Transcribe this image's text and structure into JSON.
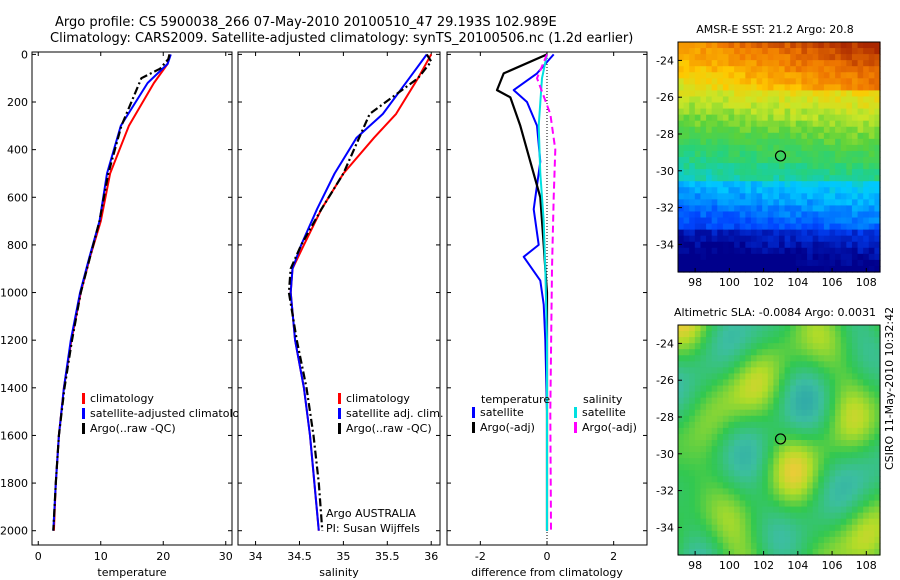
{
  "header": {
    "line1": "Argo profile: CS 5900038_266 07-May-2010 20100510_47 29.193S 102.989E",
    "line2": "Climatology: CARS2009. Satellite-adjusted climatology: synTS_20100506.nc (1.2d earlier)"
  },
  "side_label": "CSIRO 11-May-2010 10:32:42",
  "colors": {
    "red": "#ff0000",
    "blue": "#0000ff",
    "black": "#000000",
    "cyan": "#00e0e0",
    "magenta": "#ff00ff"
  },
  "chart_data": [
    {
      "type": "line",
      "name": "temperature-profile",
      "xlabel": "temperature",
      "ylabel": "",
      "xlim": [
        -1,
        31
      ],
      "ylim": [
        2060,
        -10
      ],
      "xticks": [
        0,
        10,
        20,
        30
      ],
      "yticks": [
        0,
        200,
        400,
        600,
        800,
        1000,
        1200,
        1400,
        1600,
        1800,
        2000
      ],
      "legend": [
        "climatology",
        "satellite-adjusted climatology",
        "Argo(..raw -QC)"
      ],
      "series": [
        {
          "name": "climatology",
          "color": "red",
          "style": "solid",
          "x": [
            21.0,
            20.7,
            18.5,
            14.5,
            11.5,
            10.0,
            8.3,
            6.8,
            5.3,
            4.1,
            3.3,
            2.8,
            2.5
          ],
          "y": [
            0,
            40,
            120,
            300,
            500,
            700,
            850,
            1000,
            1200,
            1400,
            1600,
            1800,
            2000
          ]
        },
        {
          "name": "satellite-adjusted climatology",
          "color": "blue",
          "style": "solid",
          "x": [
            21.2,
            20.7,
            17.5,
            13.2,
            11.0,
            9.8,
            8.2,
            6.7,
            5.2,
            4.1,
            3.3,
            2.8,
            2.4
          ],
          "y": [
            0,
            40,
            120,
            300,
            500,
            700,
            850,
            1000,
            1200,
            1400,
            1600,
            1800,
            2000
          ]
        },
        {
          "name": "Argo(..raw -QC)",
          "color": "black",
          "style": "dashdot",
          "x": [
            21.0,
            20.8,
            19.5,
            16.5,
            13.3,
            11.2,
            9.8,
            8.3,
            6.8,
            5.4,
            4.2,
            3.3,
            2.8,
            2.4
          ],
          "y": [
            0,
            20,
            60,
            100,
            300,
            500,
            700,
            850,
            1000,
            1200,
            1400,
            1600,
            1800,
            2000
          ]
        }
      ]
    },
    {
      "type": "line",
      "name": "salinity-profile",
      "xlabel": "salinity",
      "ylabel": "",
      "xlim": [
        33.8,
        36.1
      ],
      "ylim": [
        2060,
        -10
      ],
      "xticks": [
        34,
        34.5,
        35,
        35.5,
        36
      ],
      "xtick_labels": [
        "34",
        "34.5",
        "35",
        "35.5",
        "36"
      ],
      "yticks": [
        0,
        200,
        400,
        600,
        800,
        1000,
        1200,
        1400,
        1600,
        1800,
        2000
      ],
      "legend": [
        "climatology",
        "satellite adj. clim.",
        "Argo(..raw -QC)"
      ],
      "annotation": [
        "Argo AUSTRALIA",
        "PI: Susan Wijffels"
      ],
      "series": [
        {
          "name": "climatology",
          "color": "red",
          "style": "solid",
          "x": [
            36.0,
            35.85,
            35.6,
            35.35,
            35.0,
            34.75,
            34.55,
            34.42,
            34.4,
            34.45,
            34.55,
            34.62,
            34.67,
            34.72
          ],
          "y": [
            0,
            100,
            250,
            350,
            500,
            650,
            800,
            900,
            1000,
            1200,
            1400,
            1600,
            1800,
            2000
          ]
        },
        {
          "name": "satellite adj. clim.",
          "color": "blue",
          "style": "solid",
          "x": [
            35.95,
            35.75,
            35.45,
            35.15,
            34.9,
            34.7,
            34.52,
            34.42,
            34.4,
            34.45,
            34.55,
            34.62,
            34.67,
            34.72
          ],
          "y": [
            0,
            100,
            250,
            350,
            500,
            650,
            800,
            900,
            1000,
            1200,
            1400,
            1600,
            1800,
            2000
          ]
        },
        {
          "name": "Argo(..raw -QC)",
          "color": "black",
          "style": "dashdot",
          "x": [
            35.95,
            36.0,
            35.85,
            35.3,
            35.0,
            34.75,
            34.52,
            34.4,
            34.38,
            34.47,
            34.58,
            34.66,
            34.72,
            34.76
          ],
          "y": [
            0,
            30,
            100,
            250,
            500,
            650,
            800,
            900,
            1000,
            1200,
            1400,
            1600,
            1800,
            2000
          ]
        }
      ]
    },
    {
      "type": "line",
      "name": "difference-profile",
      "xlabel": "difference from climatology",
      "ylabel": "",
      "xlim": [
        -3,
        3
      ],
      "ylim": [
        2060,
        -10
      ],
      "xticks": [
        -2,
        0,
        2
      ],
      "yticks": [
        0,
        200,
        400,
        600,
        800,
        1000,
        1200,
        1400,
        1600,
        1800,
        2000
      ],
      "legend_titles": [
        "temperature",
        "salinity"
      ],
      "legend": [
        "satellite",
        "Argo(-adj)",
        "satellite",
        "Argo(-adj)"
      ],
      "series": [
        {
          "name": "temperature satellite",
          "color": "blue",
          "style": "solid",
          "x": [
            0.2,
            -0.3,
            -1.0,
            -0.6,
            -0.3,
            -0.2,
            -0.4,
            -0.25,
            -0.7,
            -0.2,
            -0.1,
            -0.05,
            0,
            0,
            0
          ],
          "y": [
            0,
            80,
            150,
            200,
            300,
            450,
            650,
            800,
            850,
            950,
            1050,
            1200,
            1500,
            1800,
            2000
          ]
        },
        {
          "name": "temperature Argo(-adj)",
          "color": "black",
          "style": "solid",
          "x": [
            0,
            -1.3,
            -1.5,
            -1.1,
            -0.8,
            -0.5,
            -0.2,
            -0.1,
            -0.05,
            0,
            0,
            0,
            0
          ],
          "y": [
            0,
            80,
            150,
            180,
            300,
            450,
            600,
            800,
            900,
            1000,
            1200,
            1600,
            2000
          ]
        },
        {
          "name": "salinity satellite",
          "color": "cyan",
          "style": "solid",
          "x": [
            0,
            -0.15,
            -0.25,
            -0.2,
            -0.1,
            -0.05,
            0,
            0
          ],
          "y": [
            0,
            100,
            300,
            500,
            700,
            900,
            1200,
            2000
          ]
        },
        {
          "name": "salinity Argo(-adj)",
          "color": "magenta",
          "style": "dashed",
          "x": [
            0,
            -0.3,
            0.1,
            0.25,
            0.2,
            0.15,
            0.1,
            0.12
          ],
          "y": [
            0,
            100,
            250,
            400,
            600,
            900,
            1500,
            2000
          ]
        }
      ]
    },
    {
      "type": "heatmap",
      "name": "sst-map",
      "title": "AMSR-E SST: 21.2 Argo: 20.8",
      "xlim": [
        97,
        108.8
      ],
      "ylim": [
        -35.5,
        -23
      ],
      "xticks": [
        98,
        100,
        102,
        104,
        106,
        108
      ],
      "yticks": [
        -24,
        -26,
        -28,
        -30,
        -32,
        -34
      ],
      "marker": {
        "lon": 102.989,
        "lat": -29.193
      }
    },
    {
      "type": "heatmap",
      "name": "sla-map",
      "title": "Altimetric SLA: -0.0084 Argo: 0.0031",
      "xlim": [
        97,
        108.8
      ],
      "ylim": [
        -35.5,
        -23
      ],
      "xticks": [
        98,
        100,
        102,
        104,
        106,
        108
      ],
      "yticks": [
        -24,
        -26,
        -28,
        -30,
        -32,
        -34
      ],
      "marker": {
        "lon": 102.989,
        "lat": -29.193
      }
    }
  ]
}
